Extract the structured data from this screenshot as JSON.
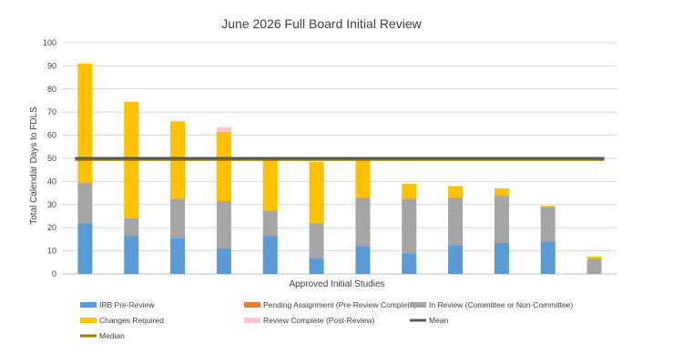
{
  "chart_data": {
    "type": "bar",
    "stacked": true,
    "title": "June 2026 Full Board Initial Review",
    "xlabel": "Approved Initial Studies",
    "ylabel": "Total Calendar Days to FDLS",
    "ylim": [
      0,
      100
    ],
    "yticks": [
      0,
      10,
      20,
      30,
      40,
      50,
      60,
      70,
      80,
      90,
      100
    ],
    "grid": true,
    "legend_position": "bottom",
    "categories": [
      "",
      "",
      "",
      "",
      "",
      "",
      "",
      "",
      "",
      "",
      "",
      ""
    ],
    "series": [
      {
        "name": "IRB Pre-Review",
        "color": "#5B9BD5",
        "values": [
          22,
          16.5,
          15.5,
          11,
          16.5,
          7,
          12,
          9,
          12.5,
          13.5,
          14,
          0
        ]
      },
      {
        "name": "Pending Assignment (Pre-Review Complete)",
        "color": "#ED7D31",
        "values": [
          0,
          0,
          0,
          0,
          0,
          0,
          0,
          0,
          0,
          0,
          0,
          0
        ]
      },
      {
        "name": "In Review (Committee or Non-Committee)",
        "color": "#A5A5A5",
        "values": [
          17.5,
          7.5,
          17,
          20.5,
          11,
          15,
          21,
          23.5,
          20.5,
          20.5,
          15,
          6.5
        ]
      },
      {
        "name": "Changes Required",
        "color": "#FFC000",
        "values": [
          51.5,
          50.5,
          33.5,
          30,
          21.5,
          26.5,
          17,
          6.5,
          5,
          3,
          0.5,
          1
        ]
      },
      {
        "name": "Review Complete (Post-Review)",
        "color": "#F8C6CC",
        "values": [
          0,
          0,
          0,
          2,
          0,
          0,
          0,
          0,
          0,
          0,
          0,
          0
        ]
      }
    ],
    "lines": [
      {
        "name": "Mean",
        "color": "#595959",
        "value": 50
      },
      {
        "name": "Median",
        "color": "#A67C00",
        "value": 49.5
      }
    ]
  }
}
